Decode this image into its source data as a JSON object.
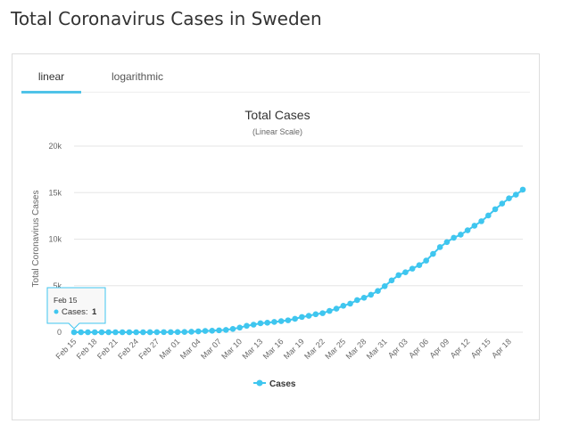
{
  "page_title": "Total Coronavirus Cases in Sweden",
  "tabs": [
    {
      "label": "linear",
      "active": true
    },
    {
      "label": "logarithmic",
      "active": false
    }
  ],
  "tooltip": {
    "date": "Feb 15",
    "label": "Cases:",
    "value": "1"
  },
  "chart_data": {
    "type": "line",
    "title": "Total Cases",
    "subtitle": "(Linear Scale)",
    "ylabel": "Total Coronavirus Cases",
    "xlabel": "",
    "ylim": [
      0,
      20000
    ],
    "y_ticks": [
      0,
      5000,
      10000,
      15000,
      20000
    ],
    "y_tick_labels": [
      "0",
      "5k",
      "10k",
      "15k",
      "20k"
    ],
    "grid": true,
    "legend_position": "bottom-center",
    "color": "#3fc6ef",
    "x_tick_labels": [
      "Feb 15",
      "Feb 18",
      "Feb 21",
      "Feb 24",
      "Feb 27",
      "Mar 01",
      "Mar 04",
      "Mar 07",
      "Mar 10",
      "Mar 13",
      "Mar 16",
      "Mar 19",
      "Mar 22",
      "Mar 25",
      "Mar 28",
      "Mar 31",
      "Apr 03",
      "Apr 06",
      "Apr 09",
      "Apr 12",
      "Apr 15",
      "Apr 18"
    ],
    "x_tick_every": 3,
    "series": [
      {
        "name": "Cases",
        "x": [
          "Feb 15",
          "Feb 16",
          "Feb 17",
          "Feb 18",
          "Feb 19",
          "Feb 20",
          "Feb 21",
          "Feb 22",
          "Feb 23",
          "Feb 24",
          "Feb 25",
          "Feb 26",
          "Feb 27",
          "Feb 28",
          "Feb 29",
          "Mar 01",
          "Mar 02",
          "Mar 03",
          "Mar 04",
          "Mar 05",
          "Mar 06",
          "Mar 07",
          "Mar 08",
          "Mar 09",
          "Mar 10",
          "Mar 11",
          "Mar 12",
          "Mar 13",
          "Mar 14",
          "Mar 15",
          "Mar 16",
          "Mar 17",
          "Mar 18",
          "Mar 19",
          "Mar 20",
          "Mar 21",
          "Mar 22",
          "Mar 23",
          "Mar 24",
          "Mar 25",
          "Mar 26",
          "Mar 27",
          "Mar 28",
          "Mar 29",
          "Mar 30",
          "Mar 31",
          "Apr 01",
          "Apr 02",
          "Apr 03",
          "Apr 04",
          "Apr 05",
          "Apr 06",
          "Apr 07",
          "Apr 08",
          "Apr 09",
          "Apr 10",
          "Apr 11",
          "Apr 12",
          "Apr 13",
          "Apr 14",
          "Apr 15",
          "Apr 16",
          "Apr 17",
          "Apr 18",
          "Apr 19",
          "Apr 20"
        ],
        "values": [
          1,
          1,
          1,
          1,
          1,
          1,
          1,
          1,
          1,
          1,
          1,
          2,
          7,
          12,
          13,
          15,
          30,
          52,
          94,
          137,
          161,
          203,
          248,
          355,
          500,
          687,
          814,
          961,
          1022,
          1103,
          1190,
          1279,
          1439,
          1639,
          1763,
          1934,
          2046,
          2286,
          2526,
          2840,
          3069,
          3447,
          3700,
          4028,
          4435,
          4947,
          5568,
          6131,
          6443,
          6830,
          7206,
          7693,
          8419,
          9141,
          9685,
          10151,
          10483,
          10948,
          11445,
          11927,
          12540,
          13216,
          13822,
          14385,
          14777,
          15322
        ]
      }
    ]
  }
}
